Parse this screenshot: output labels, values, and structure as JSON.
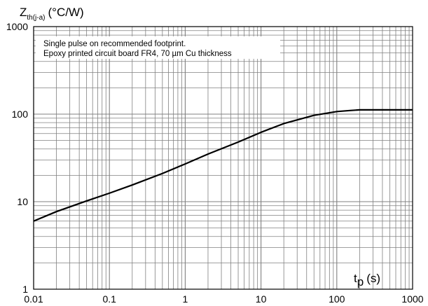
{
  "chart_data": {
    "type": "line",
    "x_scale": "log",
    "y_scale": "log",
    "xlim": [
      0.01,
      1000
    ],
    "ylim": [
      1,
      1000
    ],
    "grid": true,
    "x_ticks": [
      "0.01",
      "0.1",
      "1",
      "10",
      "100",
      "1000"
    ],
    "y_ticks": [
      "1",
      "10",
      "100",
      "1000"
    ],
    "ylabel": {
      "main": "Z",
      "subscript": "th(j-a)",
      "unit": "(°C/W)"
    },
    "xlabel": {
      "main": "t",
      "subscript": "p",
      "unit": "(s)"
    },
    "annotations": [
      "Single pulse on recommended footprint.",
      "Epoxy printed circuit board FR4, 70 µm Cu thickness"
    ],
    "series": [
      {
        "x": [
          0.01,
          0.02,
          0.05,
          0.1,
          0.2,
          0.5,
          1,
          2,
          5,
          10,
          20,
          50,
          100,
          150,
          200,
          500,
          1000
        ],
        "values": [
          6,
          7.7,
          10.2,
          12.5,
          15.5,
          21,
          27,
          35,
          48,
          62,
          78,
          97,
          107,
          110,
          112,
          112,
          112
        ]
      }
    ],
    "colors": {
      "curve": "#000000",
      "grid": "#808080",
      "frame": "#000000"
    }
  }
}
